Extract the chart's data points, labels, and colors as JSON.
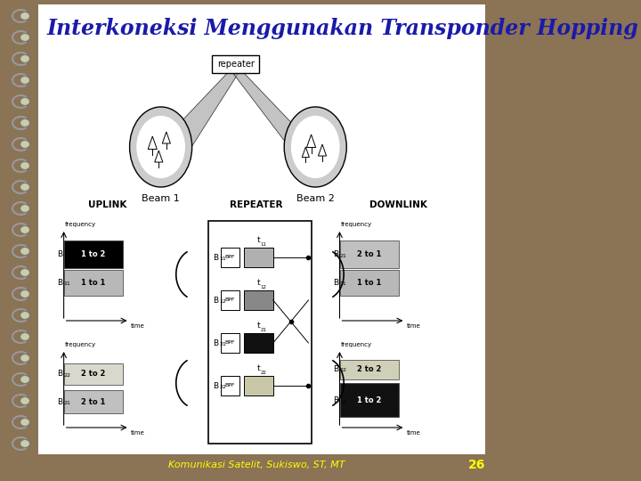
{
  "title": "Interkoneksi Menggunakan Transponder Hopping",
  "title_color": "#1a1aaa",
  "title_fontsize": 17,
  "footer_text": "Komunikasi Satelit, Sukiswo, ST, MT",
  "footer_color": "#ffff00",
  "footer_number": "26",
  "footer_number_color": "#ffff00",
  "bg_outer": "#8B7355",
  "bg_inner": "#f0f0ee",
  "border_color": "#888888"
}
